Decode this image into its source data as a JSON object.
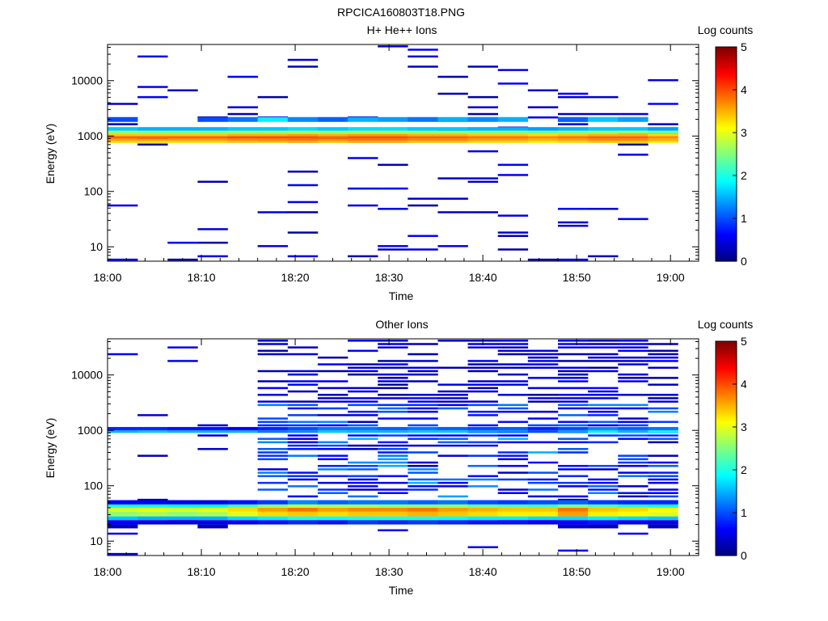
{
  "figure": {
    "title": "RPCICA160803T18.PNG"
  },
  "colors": {
    "colormap": [
      "#00007f",
      "#0000ff",
      "#007fff",
      "#00ffff",
      "#7fff7f",
      "#ffff00",
      "#ff7f00",
      "#ff0000",
      "#7f0000"
    ],
    "axis": "#000000",
    "background": "#ffffff"
  },
  "chart_data": [
    {
      "type": "heatmap",
      "title": "H+ He++ Ions",
      "xlabel": "Time",
      "ylabel": "Energy (eV)",
      "x_ticks": [
        "18:00",
        "18:10",
        "18:20",
        "18:30",
        "18:40",
        "18:50",
        "19:00"
      ],
      "xlim": [
        "18:00",
        "19:03"
      ],
      "y_scale": "log",
      "y_ticks": [
        "10",
        "100",
        "1000",
        "10000"
      ],
      "ylim": [
        5.5,
        45000
      ],
      "colorbar": {
        "label": "Log counts",
        "range": [
          0,
          5
        ],
        "ticks": [
          "0",
          "1",
          "2",
          "3",
          "4",
          "5"
        ]
      },
      "time_bins_start_minutes": [
        0,
        3.2,
        6.4,
        9.6,
        12.8,
        16.0,
        19.2,
        22.4,
        25.6,
        28.8,
        32.0,
        35.2,
        38.4,
        41.6,
        44.8,
        48.0,
        51.2,
        54.4,
        57.6
      ],
      "time_bin_width_minutes": 3.2,
      "bands_energy_ev": [
        {
          "energy_range": [
            750,
            820
          ],
          "levels": [
            3.3,
            3.3,
            3.3,
            3.3,
            3.4,
            3.4,
            3.5,
            3.4,
            3.5,
            3.5,
            3.4,
            3.4,
            3.3,
            3.3,
            3.2,
            3.3,
            3.4,
            3.4,
            3.2
          ]
        },
        {
          "energy_range": [
            820,
            900
          ],
          "levels": [
            3.6,
            3.6,
            3.6,
            3.6,
            3.7,
            3.7,
            3.8,
            3.7,
            3.8,
            3.8,
            3.7,
            3.7,
            3.6,
            3.6,
            3.5,
            3.6,
            3.7,
            3.7,
            3.5
          ]
        },
        {
          "energy_range": [
            900,
            1000
          ],
          "levels": [
            3.9,
            3.9,
            3.9,
            3.9,
            4.0,
            4.0,
            4.0,
            3.9,
            4.0,
            4.0,
            3.9,
            3.9,
            3.8,
            3.8,
            3.7,
            3.8,
            3.9,
            3.9,
            3.7
          ]
        },
        {
          "energy_range": [
            1000,
            1100
          ],
          "levels": [
            3.4,
            3.4,
            3.4,
            3.4,
            3.5,
            3.5,
            3.6,
            3.5,
            3.6,
            3.6,
            3.5,
            3.5,
            3.4,
            3.4,
            3.3,
            3.4,
            3.5,
            3.5,
            3.3
          ]
        },
        {
          "energy_range": [
            1100,
            1250
          ],
          "levels": [
            2.6,
            2.5,
            2.5,
            2.5,
            2.6,
            2.6,
            2.7,
            2.6,
            2.7,
            2.7,
            2.6,
            2.6,
            2.5,
            2.5,
            2.4,
            2.5,
            2.6,
            2.6,
            2.4
          ]
        },
        {
          "energy_range": [
            1250,
            1450
          ],
          "levels": [
            1.6,
            1.5,
            1.5,
            1.5,
            1.6,
            1.6,
            1.7,
            1.6,
            1.7,
            1.7,
            1.6,
            1.6,
            1.5,
            1.5,
            1.4,
            1.5,
            1.6,
            1.6,
            1.4
          ]
        },
        {
          "energy_range": [
            1800,
            2200
          ],
          "levels": [
            1.0,
            0,
            0,
            1.0,
            1.2,
            1.8,
            1.3,
            1.1,
            1.5,
            1.4,
            1.2,
            1.5,
            1.3,
            1.5,
            0,
            1.1,
            1.6,
            1.4,
            0
          ]
        }
      ]
    },
    {
      "type": "heatmap",
      "title": "Other Ions",
      "xlabel": "Time",
      "ylabel": "Energy (eV)",
      "x_ticks": [
        "18:00",
        "18:10",
        "18:20",
        "18:30",
        "18:40",
        "18:50",
        "19:00"
      ],
      "xlim": [
        "18:00",
        "19:03"
      ],
      "y_scale": "log",
      "y_ticks": [
        "10",
        "100",
        "1000",
        "10000"
      ],
      "ylim": [
        5.5,
        45000
      ],
      "colorbar": {
        "label": "Log counts",
        "range": [
          0,
          5
        ],
        "ticks": [
          "0",
          "1",
          "2",
          "3",
          "4",
          "5"
        ]
      },
      "time_bins_start_minutes": [
        0,
        3.2,
        6.4,
        9.6,
        12.8,
        16.0,
        19.2,
        22.4,
        25.6,
        28.8,
        32.0,
        35.2,
        38.4,
        41.6,
        44.8,
        48.0,
        51.2,
        54.4,
        57.6
      ],
      "time_bin_width_minutes": 3.2,
      "bands_energy_ev": [
        {
          "energy_range": [
            17,
            20
          ],
          "levels": [
            0.3,
            0,
            0,
            0.3,
            0,
            0,
            0,
            0,
            0,
            0,
            0,
            0,
            0,
            0,
            0,
            0.4,
            0.3,
            0,
            0.3
          ]
        },
        {
          "energy_range": [
            20,
            24
          ],
          "levels": [
            0.6,
            0.5,
            0.5,
            0.5,
            0.6,
            0.7,
            0.8,
            0.7,
            0.9,
            0.8,
            0.9,
            0.8,
            0.7,
            0.7,
            0.6,
            0.6,
            0.7,
            0.6,
            0.5
          ]
        },
        {
          "energy_range": [
            24,
            28
          ],
          "levels": [
            1.6,
            1.5,
            1.5,
            1.5,
            1.7,
            1.8,
            2.0,
            1.9,
            2.0,
            2.0,
            2.0,
            1.9,
            1.8,
            1.8,
            1.7,
            1.7,
            1.8,
            1.7,
            1.6
          ]
        },
        {
          "energy_range": [
            28,
            34
          ],
          "levels": [
            2.6,
            2.7,
            2.6,
            2.7,
            3.0,
            3.3,
            3.4,
            3.3,
            3.4,
            3.4,
            3.5,
            3.4,
            3.3,
            3.2,
            3.2,
            3.6,
            3.2,
            3.1,
            3.0
          ]
        },
        {
          "energy_range": [
            34,
            40
          ],
          "levels": [
            2.9,
            3.0,
            2.9,
            3.0,
            3.3,
            3.6,
            3.8,
            3.6,
            3.7,
            3.7,
            3.8,
            3.6,
            3.5,
            3.4,
            3.4,
            3.8,
            3.4,
            3.3,
            3.1
          ]
        },
        {
          "energy_range": [
            40,
            46
          ],
          "levels": [
            2.0,
            2.0,
            1.9,
            1.9,
            2.2,
            2.6,
            2.8,
            2.7,
            2.7,
            2.6,
            2.6,
            2.6,
            2.4,
            2.3,
            2.2,
            2.5,
            2.3,
            2.1,
            2.0
          ]
        },
        {
          "energy_range": [
            46,
            55
          ],
          "levels": [
            0.6,
            0.6,
            0.5,
            0.5,
            0.7,
            0.9,
            1.3,
            1.1,
            1.2,
            1.2,
            1.1,
            1.2,
            1.0,
            0.9,
            1.0,
            1.1,
            0.9,
            0.8,
            0.8
          ]
        },
        {
          "energy_range": [
            900,
            1000
          ],
          "levels": [
            1.5,
            1.6,
            1.5,
            1.5,
            1.5,
            1.2,
            1.3,
            1.6,
            1.5,
            1.5,
            1.6,
            1.6,
            1.4,
            1.3,
            1.0,
            1.4,
            1.8,
            1.5,
            1.9
          ]
        },
        {
          "energy_range": [
            1000,
            1150
          ],
          "levels": [
            0.8,
            0.8,
            0.7,
            0.7,
            0.6,
            0.8,
            1.0,
            1.2,
            1.2,
            1.1,
            1.2,
            1.1,
            1.0,
            1.1,
            0.8,
            1.0,
            1.3,
            1.1,
            1.2
          ]
        }
      ],
      "scatter_region_energy_ev": [
        55,
        45000
      ],
      "scatter_region_bins": [
        5,
        6,
        7,
        8,
        9,
        10,
        11,
        12,
        13,
        14,
        15,
        16,
        17,
        18
      ]
    }
  ]
}
